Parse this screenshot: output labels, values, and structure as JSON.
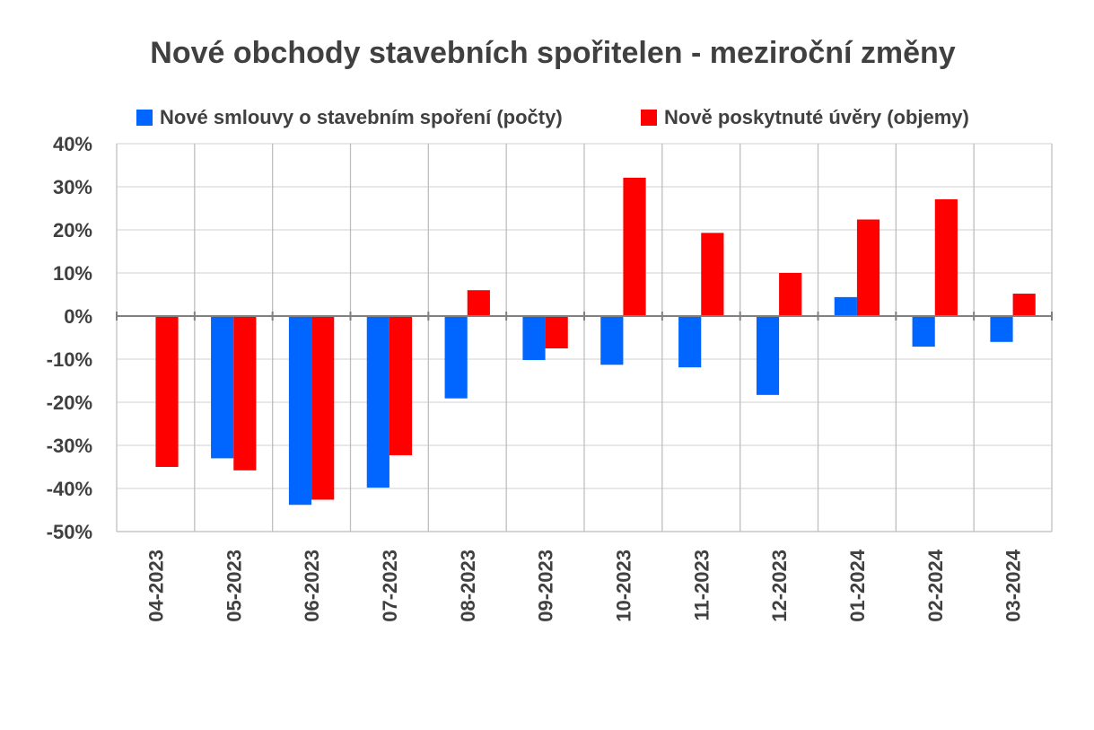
{
  "chart_data": {
    "type": "bar",
    "title": "Nové obchody stavebních spořitelen - meziroční změny",
    "categories": [
      "04-2023",
      "05-2023",
      "06-2023",
      "07-2023",
      "08-2023",
      "09-2023",
      "10-2023",
      "11-2023",
      "12-2023",
      "01-2024",
      "02-2024",
      "03-2024"
    ],
    "series": [
      {
        "name": "Nové smlouvy o stavebním spoření (počty)",
        "color": "#0066ff",
        "values": [
          0.2,
          -33.0,
          -43.8,
          -39.8,
          -19.1,
          -10.2,
          -11.3,
          -11.9,
          -18.3,
          4.4,
          -7.1,
          -6.0
        ]
      },
      {
        "name": "Nově poskytnuté úvěry (objemy)",
        "color": "#ff0000",
        "values": [
          -35.0,
          -35.8,
          -42.6,
          -32.3,
          6.0,
          -7.5,
          32.1,
          19.3,
          10.0,
          22.4,
          27.1,
          5.2
        ]
      }
    ],
    "ylim": [
      -50,
      40
    ],
    "yticks": [
      40,
      30,
      20,
      10,
      0,
      -10,
      -20,
      -30,
      -40,
      -50
    ],
    "ytick_labels": [
      "40%",
      "30%",
      "20%",
      "10%",
      "0%",
      "-10%",
      "-20%",
      "-30%",
      "-40%",
      "-50%"
    ],
    "grid": true,
    "legend": "top"
  }
}
